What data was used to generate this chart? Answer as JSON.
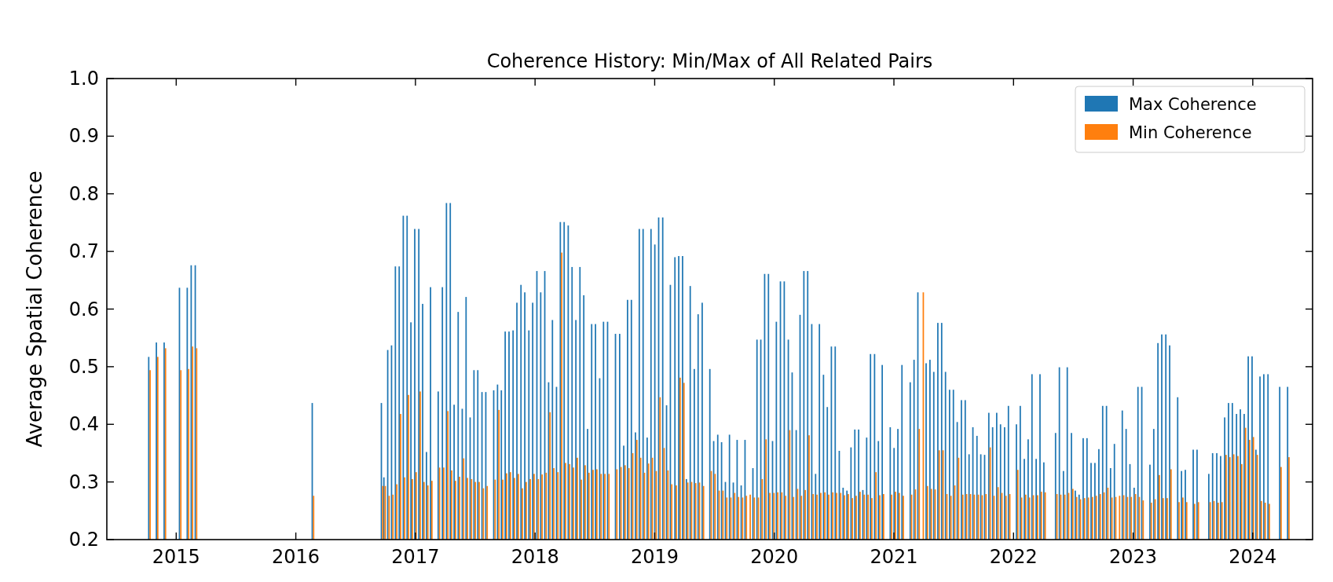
{
  "chart_data": {
    "type": "bar",
    "title": "Coherence History: Min/Max of All Related Pairs",
    "ylabel": "Average Spatial Coherence",
    "x": [
      2014.776,
      2014.84,
      2014.905,
      2015.033,
      2015.098,
      2015.131,
      2015.165,
      2016.143,
      2016.721,
      2016.742,
      2016.774,
      2016.806,
      2016.838,
      2016.87,
      2016.904,
      2016.936,
      2016.968,
      2017.0,
      2017.034,
      2017.066,
      2017.098,
      2017.132,
      2017.196,
      2017.231,
      2017.265,
      2017.297,
      2017.329,
      2017.363,
      2017.397,
      2017.429,
      2017.463,
      2017.495,
      2017.527,
      2017.562,
      2017.594,
      2017.66,
      2017.692,
      2017.724,
      2017.756,
      2017.788,
      2017.822,
      2017.854,
      2017.888,
      2017.92,
      2017.954,
      2017.986,
      2018.021,
      2018.053,
      2018.087,
      2018.119,
      2018.151,
      2018.185,
      2018.217,
      2018.249,
      2018.283,
      2018.315,
      2018.347,
      2018.381,
      2018.413,
      2018.445,
      2018.479,
      2018.511,
      2018.546,
      2018.578,
      2018.612,
      2018.678,
      2018.713,
      2018.747,
      2018.779,
      2018.811,
      2018.845,
      2018.877,
      2018.909,
      2018.943,
      2018.975,
      2019.007,
      2019.039,
      2019.073,
      2019.105,
      2019.137,
      2019.175,
      2019.207,
      2019.239,
      2019.271,
      2019.303,
      2019.337,
      2019.369,
      2019.403,
      2019.467,
      2019.499,
      2019.533,
      2019.565,
      2019.597,
      2019.631,
      2019.663,
      2019.695,
      2019.729,
      2019.761,
      2019.793,
      2019.827,
      2019.861,
      2019.893,
      2019.925,
      2019.957,
      2019.991,
      2020.023,
      2020.057,
      2020.089,
      2020.123,
      2020.155,
      2020.189,
      2020.221,
      2020.253,
      2020.285,
      2020.319,
      2020.351,
      2020.383,
      2020.417,
      2020.449,
      2020.483,
      2020.515,
      2020.549,
      2020.581,
      2020.613,
      2020.647,
      2020.679,
      2020.711,
      2020.746,
      2020.778,
      2020.81,
      2020.844,
      2020.876,
      2020.908,
      2020.975,
      2021.007,
      2021.039,
      2021.073,
      2021.142,
      2021.174,
      2021.206,
      2021.24,
      2021.275,
      2021.307,
      2021.339,
      2021.373,
      2021.405,
      2021.437,
      2021.471,
      2021.503,
      2021.535,
      2021.57,
      2021.602,
      2021.634,
      2021.666,
      2021.7,
      2021.732,
      2021.764,
      2021.799,
      2021.831,
      2021.865,
      2021.897,
      2021.931,
      2021.963,
      2022.03,
      2022.062,
      2022.096,
      2022.128,
      2022.16,
      2022.195,
      2022.227,
      2022.259,
      2022.357,
      2022.389,
      2022.423,
      2022.455,
      2022.49,
      2022.522,
      2022.554,
      2022.588,
      2022.62,
      2022.654,
      2022.686,
      2022.719,
      2022.751,
      2022.783,
      2022.817,
      2022.849,
      2022.881,
      2022.915,
      2022.947,
      2022.979,
      2023.014,
      2023.046,
      2023.078,
      2023.146,
      2023.178,
      2023.213,
      2023.245,
      2023.279,
      2023.311,
      2023.378,
      2023.41,
      2023.442,
      2023.508,
      2023.54,
      2023.638,
      2023.67,
      2023.705,
      2023.737,
      2023.771,
      2023.803,
      2023.835,
      2023.87,
      2023.902,
      2023.934,
      2023.968,
      2024.0,
      2024.032,
      2024.066,
      2024.098,
      2024.133,
      2024.231,
      2024.297
    ],
    "series": [
      {
        "name": "Max Coherence",
        "color": "#1f77b4",
        "values": [
          0.517,
          0.542,
          0.542,
          0.637,
          0.637,
          0.676,
          0.676,
          0.437,
          0.437,
          0.308,
          0.529,
          0.537,
          0.674,
          0.674,
          0.762,
          0.762,
          0.577,
          0.739,
          0.739,
          0.609,
          0.352,
          0.638,
          0.457,
          0.638,
          0.784,
          0.784,
          0.434,
          0.595,
          0.427,
          0.621,
          0.412,
          0.494,
          0.494,
          0.456,
          0.456,
          0.459,
          0.469,
          0.459,
          0.561,
          0.561,
          0.563,
          0.611,
          0.642,
          0.629,
          0.563,
          0.611,
          0.666,
          0.629,
          0.666,
          0.473,
          0.581,
          0.465,
          0.751,
          0.751,
          0.745,
          0.673,
          0.581,
          0.673,
          0.624,
          0.392,
          0.574,
          0.574,
          0.48,
          0.578,
          0.578,
          0.557,
          0.557,
          0.363,
          0.616,
          0.616,
          0.386,
          0.739,
          0.739,
          0.377,
          0.739,
          0.712,
          0.759,
          0.759,
          0.433,
          0.642,
          0.69,
          0.692,
          0.692,
          0.305,
          0.64,
          0.496,
          0.591,
          0.611,
          0.496,
          0.371,
          0.382,
          0.369,
          0.3,
          0.382,
          0.299,
          0.373,
          0.294,
          0.373,
          null,
          0.324,
          0.547,
          0.547,
          0.661,
          0.661,
          0.371,
          0.578,
          0.648,
          0.648,
          0.547,
          0.49,
          0.39,
          0.59,
          0.666,
          0.666,
          0.574,
          0.314,
          0.574,
          0.486,
          0.43,
          0.535,
          0.535,
          0.354,
          0.29,
          0.285,
          0.36,
          0.391,
          0.391,
          0.286,
          0.377,
          0.522,
          0.522,
          0.371,
          0.503,
          0.395,
          0.359,
          0.392,
          0.503,
          0.473,
          0.512,
          0.629,
          null,
          0.506,
          0.512,
          0.491,
          0.576,
          0.576,
          0.491,
          0.46,
          0.46,
          0.404,
          0.442,
          0.442,
          0.348,
          0.395,
          0.38,
          0.348,
          0.347,
          0.42,
          0.395,
          0.42,
          0.4,
          0.395,
          0.432,
          0.4,
          0.432,
          0.34,
          0.374,
          0.487,
          0.34,
          0.487,
          0.334,
          0.385,
          0.499,
          0.319,
          0.499,
          0.385,
          0.285,
          0.278,
          0.376,
          0.376,
          0.333,
          0.333,
          0.357,
          0.432,
          0.432,
          0.324,
          0.366,
          null,
          0.424,
          0.392,
          0.331,
          0.29,
          0.465,
          0.465,
          0.33,
          0.392,
          0.541,
          0.556,
          0.556,
          0.537,
          0.447,
          0.319,
          0.321,
          0.356,
          0.356,
          0.314,
          0.35,
          0.35,
          0.345,
          0.412,
          0.437,
          0.437,
          0.418,
          0.426,
          0.418,
          0.518,
          0.518,
          0.356,
          0.483,
          0.487,
          0.487,
          0.465,
          0.465
        ]
      },
      {
        "name": "Min Coherence",
        "color": "#ff7f0e",
        "values": [
          0.494,
          0.517,
          0.532,
          0.494,
          0.496,
          0.535,
          0.532,
          0.276,
          0.293,
          0.293,
          0.276,
          0.278,
          0.296,
          0.418,
          0.308,
          0.451,
          0.305,
          0.317,
          0.457,
          0.3,
          0.294,
          0.302,
          0.325,
          0.325,
          0.423,
          0.32,
          0.302,
          0.309,
          0.341,
          0.307,
          0.305,
          0.3,
          0.3,
          0.289,
          0.293,
          0.304,
          0.425,
          0.304,
          0.315,
          0.317,
          0.307,
          0.314,
          0.289,
          0.3,
          0.305,
          0.314,
          0.305,
          0.313,
          0.316,
          0.421,
          0.324,
          0.317,
          0.698,
          0.333,
          0.331,
          0.325,
          0.342,
          0.304,
          0.329,
          0.316,
          0.321,
          0.322,
          0.314,
          0.314,
          0.314,
          0.322,
          0.326,
          0.329,
          0.324,
          0.35,
          0.373,
          0.342,
          0.316,
          0.332,
          0.342,
          0.319,
          0.447,
          0.359,
          0.32,
          0.296,
          0.294,
          0.481,
          0.472,
          0.299,
          0.3,
          0.298,
          0.299,
          0.293,
          0.319,
          0.314,
          0.285,
          0.285,
          0.273,
          0.273,
          0.281,
          0.274,
          0.273,
          0.276,
          0.278,
          0.273,
          0.273,
          0.305,
          0.374,
          0.281,
          0.281,
          0.282,
          0.282,
          0.276,
          0.39,
          0.274,
          0.288,
          0.276,
          0.286,
          0.381,
          0.279,
          0.278,
          0.281,
          0.282,
          0.278,
          0.282,
          0.281,
          0.281,
          0.277,
          0.279,
          0.272,
          0.276,
          0.283,
          0.278,
          0.278,
          0.272,
          0.317,
          0.277,
          0.279,
          0.278,
          0.283,
          0.281,
          0.276,
          0.278,
          0.287,
          0.392,
          0.629,
          0.293,
          0.288,
          0.287,
          0.355,
          0.355,
          0.279,
          0.276,
          0.294,
          0.342,
          0.278,
          0.279,
          0.279,
          0.278,
          0.278,
          0.277,
          0.279,
          0.36,
          0.276,
          0.291,
          0.281,
          0.276,
          0.279,
          0.321,
          0.273,
          0.278,
          0.273,
          0.277,
          0.277,
          0.283,
          0.282,
          0.279,
          0.278,
          0.278,
          0.281,
          0.288,
          0.274,
          0.27,
          0.272,
          0.273,
          0.274,
          0.276,
          0.279,
          0.282,
          0.29,
          0.273,
          0.274,
          0.276,
          0.277,
          0.274,
          0.274,
          0.279,
          0.274,
          0.268,
          0.264,
          0.27,
          0.312,
          0.272,
          0.272,
          0.322,
          0.265,
          0.273,
          0.265,
          0.262,
          0.265,
          0.265,
          0.267,
          0.264,
          0.265,
          0.347,
          0.343,
          0.348,
          0.345,
          0.331,
          0.394,
          0.373,
          0.378,
          0.347,
          0.267,
          0.264,
          0.262,
          0.326,
          0.343
        ]
      }
    ],
    "xlim": [
      2014.42,
      2024.5
    ],
    "xticks": [
      2015,
      2016,
      2017,
      2018,
      2019,
      2020,
      2021,
      2022,
      2023,
      2024
    ],
    "ylim": [
      0.2,
      1.0
    ],
    "yticks": [
      0.2,
      0.3,
      0.4,
      0.5,
      0.6,
      0.7,
      0.8,
      0.9,
      {
        "value": 1.0,
        "label": "1.0"
      }
    ],
    "legend": "top right"
  }
}
